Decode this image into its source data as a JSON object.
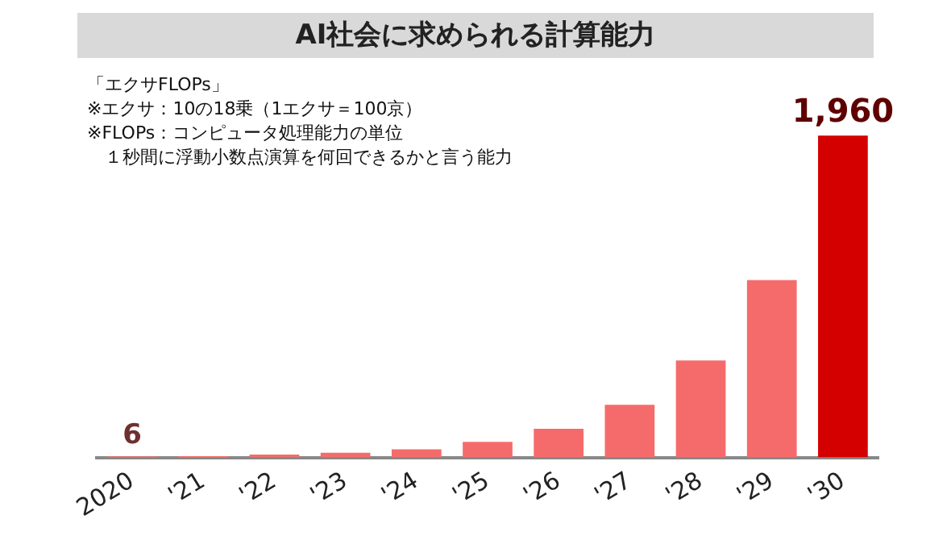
{
  "chart_data": {
    "type": "bar",
    "title": "AI社会に求められる計算能力",
    "categories": [
      "2020",
      "'21",
      "'22",
      "'23",
      "'24",
      "'25",
      "'26",
      "'27",
      "'28",
      "'29",
      "'30"
    ],
    "values": [
      6,
      8,
      18,
      28,
      50,
      95,
      175,
      320,
      590,
      1080,
      1960
    ],
    "value_labels": [
      "6",
      null,
      null,
      null,
      null,
      null,
      null,
      null,
      null,
      null,
      "1,960"
    ],
    "colors": [
      "#f56b6b",
      "#f56b6b",
      "#f56b6b",
      "#f56b6b",
      "#f56b6b",
      "#f56b6b",
      "#f56b6b",
      "#f56b6b",
      "#f56b6b",
      "#f56b6b",
      "#d40000"
    ],
    "annotations": [
      "「エクサFLOPs」",
      "※エクサ：10の18乗（1エクサ＝100京）",
      "※FLOPs：コンピュータ処理能力の単位",
      "　１秒間に浮動小数点演算を何回できるかと言う能力"
    ],
    "grid": false,
    "legend": false,
    "tick_labels": "x"
  }
}
